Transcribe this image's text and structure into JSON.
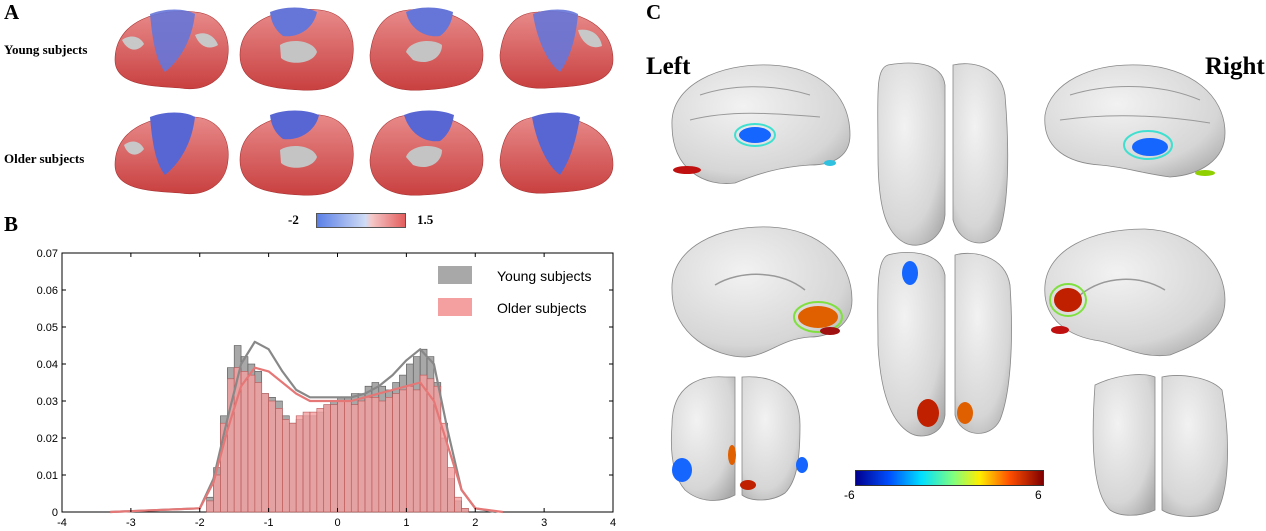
{
  "panels": {
    "a": "A",
    "b": "B",
    "c": "C"
  },
  "panel_a": {
    "rows": [
      "Young subjects",
      "Older subjects"
    ],
    "colorbar": {
      "min": "-2",
      "max": "1.5",
      "colors": [
        "#5b7fe6",
        "#cfdcf5",
        "#f4c8c8",
        "#e35d5d"
      ]
    }
  },
  "panel_c": {
    "left": "Left",
    "right": "Right",
    "colorbar": {
      "min": "-6",
      "max": "6",
      "colors": [
        "#00008f",
        "#0050ff",
        "#00dfff",
        "#7fff7f",
        "#ffef00",
        "#ff5000",
        "#800000"
      ]
    }
  },
  "chart_data": {
    "type": "bar",
    "title": "",
    "xlabel": "",
    "ylabel": "",
    "xlim": [
      -4,
      4
    ],
    "ylim": [
      0,
      0.07
    ],
    "xticks": [
      "-4",
      "-3",
      "-2",
      "-1",
      "0",
      "1",
      "2",
      "3",
      "4"
    ],
    "yticks": [
      "0",
      "0.01",
      "0.02",
      "0.03",
      "0.04",
      "0.05",
      "0.06",
      "0.07"
    ],
    "bin_start": -2.0,
    "bin_width": 0.1,
    "legend_position": "top-right",
    "series": [
      {
        "name": "Young subjects",
        "color": "#a8a8a8",
        "values": [
          0.0,
          0.004,
          0.012,
          0.026,
          0.039,
          0.045,
          0.042,
          0.04,
          0.038,
          0.032,
          0.031,
          0.03,
          0.026,
          0.024,
          0.025,
          0.026,
          0.026,
          0.027,
          0.029,
          0.03,
          0.031,
          0.031,
          0.032,
          0.032,
          0.034,
          0.035,
          0.034,
          0.033,
          0.035,
          0.037,
          0.04,
          0.042,
          0.044,
          0.042,
          0.035,
          0.02,
          0.009,
          0.003,
          0.001
        ],
        "curve": [
          [
            -3.3,
            0.0
          ],
          [
            -2.0,
            0.001
          ],
          [
            -1.8,
            0.009
          ],
          [
            -1.6,
            0.025
          ],
          [
            -1.4,
            0.04
          ],
          [
            -1.2,
            0.046
          ],
          [
            -1.0,
            0.044
          ],
          [
            -0.8,
            0.038
          ],
          [
            -0.6,
            0.033
          ],
          [
            -0.4,
            0.031
          ],
          [
            -0.2,
            0.031
          ],
          [
            0.0,
            0.031
          ],
          [
            0.2,
            0.031
          ],
          [
            0.4,
            0.032
          ],
          [
            0.6,
            0.034
          ],
          [
            0.8,
            0.037
          ],
          [
            1.0,
            0.041
          ],
          [
            1.2,
            0.044
          ],
          [
            1.4,
            0.04
          ],
          [
            1.6,
            0.022
          ],
          [
            1.8,
            0.006
          ],
          [
            2.0,
            0.001
          ],
          [
            2.3,
            0.0
          ]
        ]
      },
      {
        "name": "Older subjects",
        "color": "#f4a0a0",
        "values": [
          0.0,
          0.003,
          0.01,
          0.024,
          0.036,
          0.039,
          0.038,
          0.037,
          0.035,
          0.032,
          0.03,
          0.028,
          0.025,
          0.024,
          0.026,
          0.027,
          0.027,
          0.028,
          0.029,
          0.029,
          0.03,
          0.03,
          0.029,
          0.03,
          0.031,
          0.031,
          0.03,
          0.031,
          0.032,
          0.033,
          0.034,
          0.033,
          0.037,
          0.036,
          0.034,
          0.024,
          0.012,
          0.004,
          0.001
        ],
        "curve": [
          [
            -3.3,
            0.0
          ],
          [
            -2.0,
            0.001
          ],
          [
            -1.8,
            0.008
          ],
          [
            -1.6,
            0.022
          ],
          [
            -1.4,
            0.034
          ],
          [
            -1.2,
            0.039
          ],
          [
            -1.0,
            0.038
          ],
          [
            -0.8,
            0.035
          ],
          [
            -0.6,
            0.032
          ],
          [
            -0.4,
            0.03
          ],
          [
            -0.2,
            0.03
          ],
          [
            0.0,
            0.03
          ],
          [
            0.2,
            0.03
          ],
          [
            0.4,
            0.031
          ],
          [
            0.6,
            0.032
          ],
          [
            0.8,
            0.033
          ],
          [
            1.0,
            0.034
          ],
          [
            1.2,
            0.035
          ],
          [
            1.4,
            0.03
          ],
          [
            1.6,
            0.018
          ],
          [
            1.8,
            0.006
          ],
          [
            2.0,
            0.001
          ],
          [
            2.4,
            0.0
          ]
        ]
      }
    ]
  }
}
